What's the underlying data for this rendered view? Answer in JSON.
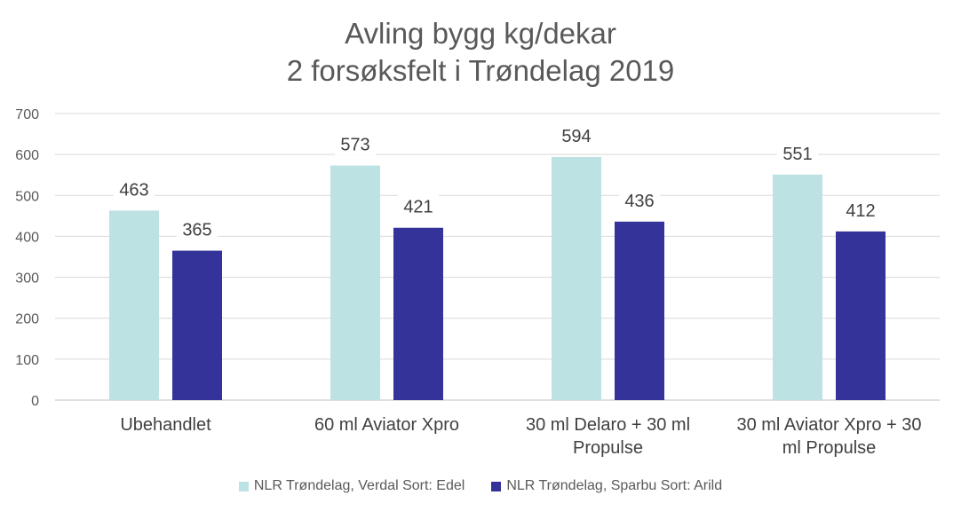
{
  "chart_data": {
    "type": "bar",
    "title": [
      "Avling bygg kg/dekar",
      "2 forsøksfelt i Trøndelag 2019"
    ],
    "categories": [
      [
        "Ubehandlet"
      ],
      [
        "60 ml Aviator Xpro"
      ],
      [
        "30 ml Delaro + 30 ml",
        "Propulse"
      ],
      [
        "30 ml Aviator Xpro + 30",
        "ml Propulse"
      ]
    ],
    "series": [
      {
        "name": "NLR Trøndelag, Verdal Sort: Edel",
        "color": "#bde2e3",
        "values": [
          463,
          573,
          594,
          551
        ]
      },
      {
        "name": "NLR Trøndelag, Sparbu Sort: Arild",
        "color": "#333399",
        "values": [
          365,
          421,
          436,
          412
        ]
      }
    ],
    "ylim": [
      0,
      700
    ],
    "yticks": [
      0,
      100,
      200,
      300,
      400,
      500,
      600,
      700
    ],
    "grid": true,
    "legend_position": "bottom",
    "data_labels": true
  }
}
